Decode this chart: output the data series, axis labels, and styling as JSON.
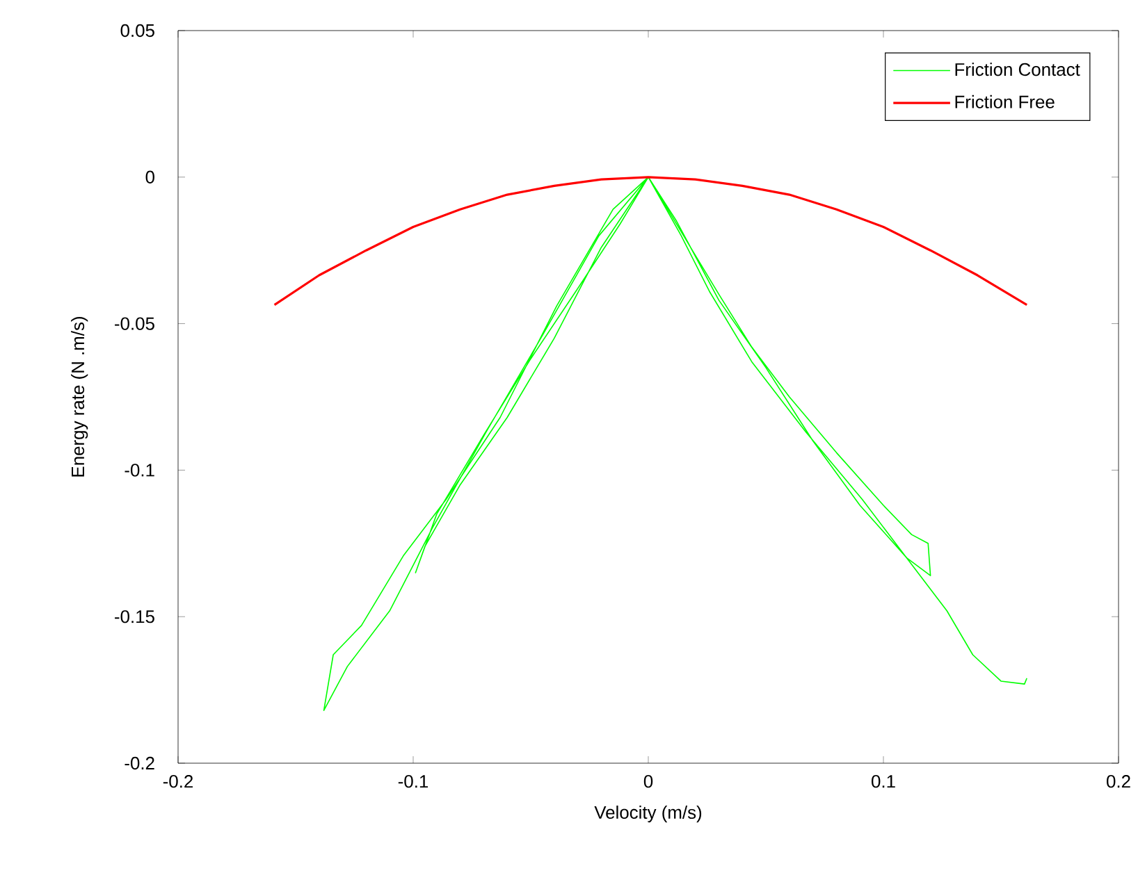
{
  "chart_data": {
    "type": "line",
    "xlabel": "Velocity (m/s)",
    "ylabel": "Energy rate (N .m/s)",
    "xlim": [
      -0.2,
      0.2
    ],
    "ylim": [
      -0.2,
      0.05
    ],
    "xticks": [
      -0.2,
      -0.1,
      0,
      0.1,
      0.2
    ],
    "yticks": [
      -0.2,
      -0.15,
      -0.1,
      -0.05,
      0,
      0.05
    ],
    "legend": "top right",
    "grid": false,
    "marker": "none",
    "line_style": "solid",
    "series": [
      {
        "name": "Friction Contact",
        "color": "#00ff00",
        "x": [
          0.161,
          0.16,
          0.15,
          0.138,
          0.127,
          0.109,
          0.091,
          0.067,
          0.044,
          0.026,
          0.014,
          0,
          -0.021,
          -0.045,
          -0.069,
          -0.092,
          -0.11,
          -0.128,
          -0.138,
          -0.134,
          -0.122,
          -0.104,
          -0.086,
          -0.063,
          -0.039,
          -0.015,
          0,
          0.015,
          0.03,
          0.044,
          0.06,
          0.08,
          0.1,
          0.112,
          0.119,
          0.12,
          0.11,
          0.09,
          0.07,
          0.05,
          0.03,
          0.012,
          0,
          -0.012,
          -0.03,
          -0.05,
          -0.07,
          -0.09,
          -0.099,
          -0.095,
          -0.08,
          -0.06,
          -0.04,
          -0.02,
          0
        ],
        "values": [
          -0.171,
          -0.173,
          -0.172,
          -0.163,
          -0.148,
          -0.129,
          -0.11,
          -0.087,
          -0.063,
          -0.039,
          -0.02,
          0,
          -0.02,
          -0.054,
          -0.087,
          -0.12,
          -0.148,
          -0.167,
          -0.182,
          -0.163,
          -0.153,
          -0.129,
          -0.11,
          -0.082,
          -0.044,
          -0.011,
          0,
          -0.02,
          -0.04,
          -0.058,
          -0.075,
          -0.094,
          -0.112,
          -0.122,
          -0.125,
          -0.136,
          -0.13,
          -0.112,
          -0.09,
          -0.065,
          -0.042,
          -0.015,
          0,
          -0.016,
          -0.038,
          -0.062,
          -0.088,
          -0.115,
          -0.135,
          -0.126,
          -0.105,
          -0.082,
          -0.055,
          -0.024,
          0
        ]
      },
      {
        "name": "Friction Free",
        "color": "#ff0000",
        "x": [
          -0.159,
          -0.14,
          -0.12,
          -0.1,
          -0.08,
          -0.06,
          -0.04,
          -0.02,
          0,
          0.02,
          0.04,
          0.06,
          0.08,
          0.1,
          0.12,
          0.14,
          0.161
        ],
        "values": [
          -0.0436,
          -0.0335,
          -0.025,
          -0.017,
          -0.011,
          -0.006,
          -0.003,
          -0.0008,
          0,
          -0.0008,
          -0.003,
          -0.006,
          -0.011,
          -0.017,
          -0.025,
          -0.0335,
          -0.0436
        ]
      }
    ]
  }
}
